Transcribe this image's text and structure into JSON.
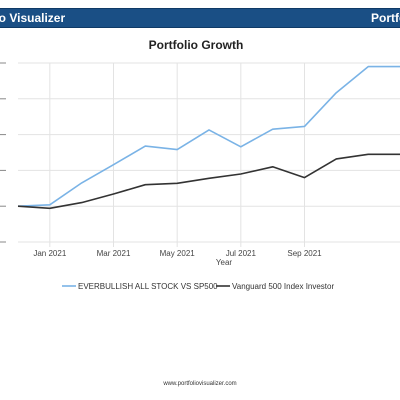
{
  "header": {
    "left_title": "lio Visualizer",
    "right_title": "Portfo"
  },
  "footer": {
    "url": "www.portfoliovisualizer.com"
  },
  "colors": {
    "header_bg": "#1a4f85",
    "series_1": "#7ab3e6",
    "series_2": "#333333",
    "grid": "#e3e3e3"
  },
  "chart_data": {
    "type": "line",
    "title": "Portfolio Growth",
    "xlabel": "Year",
    "ylabel": "",
    "x": [
      "2020-12",
      "2021-01",
      "2021-02",
      "2021-03",
      "2021-04",
      "2021-05",
      "2021-06",
      "2021-07",
      "2021-08",
      "2021-09",
      "2021-10",
      "2021-11",
      "2021-12"
    ],
    "x_tick_labels": [
      "Jan 2021",
      "Mar 2021",
      "May 2021",
      "Jul 2021",
      "Sep 2021"
    ],
    "x_tick_positions": [
      "2021-01",
      "2021-03",
      "2021-05",
      "2021-07",
      "2021-09"
    ],
    "ylim": [
      0,
      5
    ],
    "y_ticks": [
      0,
      1,
      2,
      3,
      4,
      5
    ],
    "y_tick_labels": [
      "",
      "",
      "",
      "",
      "",
      ""
    ],
    "grid": true,
    "legend": "bottom",
    "series": [
      {
        "name": "EVERBULLISH ALL STOCK VS SP500",
        "color": "#7ab3e6",
        "values": [
          1.0,
          1.04,
          1.65,
          2.16,
          2.68,
          2.58,
          3.13,
          2.66,
          3.15,
          3.23,
          4.17,
          4.9,
          4.9
        ]
      },
      {
        "name": "Vanguard 500 Index Investor",
        "color": "#333333",
        "values": [
          1.0,
          0.94,
          1.1,
          1.34,
          1.6,
          1.64,
          1.78,
          1.9,
          2.1,
          1.8,
          2.32,
          2.45,
          2.45
        ]
      }
    ]
  }
}
